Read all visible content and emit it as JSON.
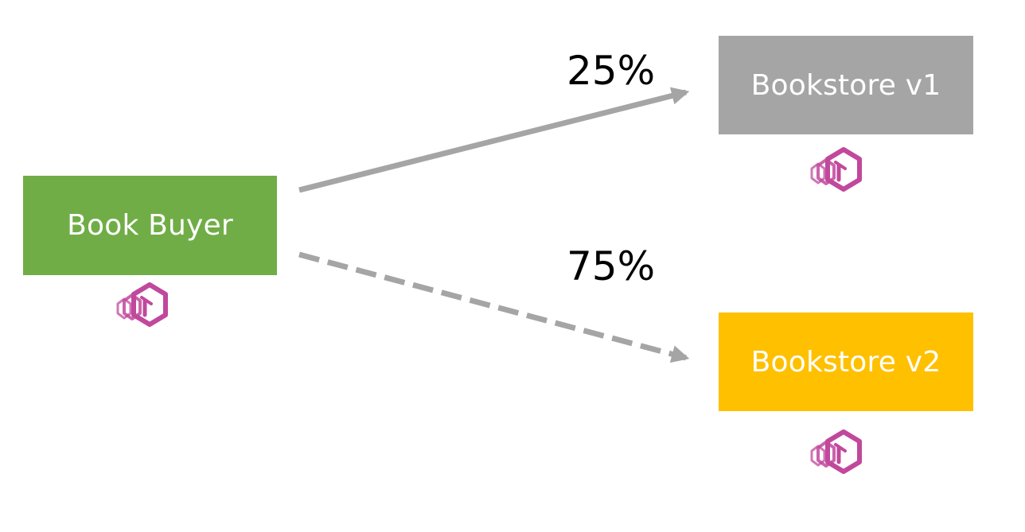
{
  "nodes": {
    "buyer": {
      "label": "Book Buyer",
      "color": "#70AD47"
    },
    "v1": {
      "label": "Bookstore v1",
      "color": "#A5A5A5"
    },
    "v2": {
      "label": "Bookstore v2",
      "color": "#FFC000"
    }
  },
  "edges": [
    {
      "from": "Book Buyer",
      "to": "Bookstore v1",
      "weight_label": "25%",
      "style": "solid",
      "color": "#A5A5A5"
    },
    {
      "from": "Book Buyer",
      "to": "Bookstore v2",
      "weight_label": "75%",
      "style": "dashed",
      "color": "#A5A5A5"
    }
  ],
  "icons": {
    "sidecar": "envoy-proxy-icon",
    "sidecar_color": "#C1489C"
  }
}
